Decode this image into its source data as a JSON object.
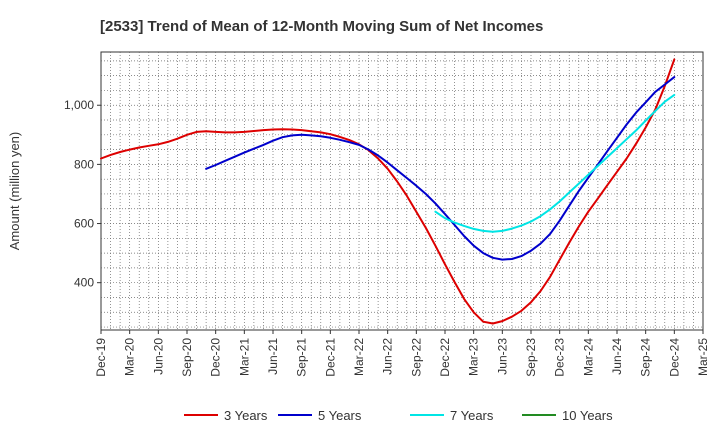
{
  "chart_data": {
    "type": "line",
    "title": "[2533]  Trend of Mean of 12-Month Moving Sum of Net Incomes",
    "ylabel": "Amount (million yen)",
    "xlabel": "",
    "x_ticks": [
      "Dec-19",
      "Mar-20",
      "Jun-20",
      "Sep-20",
      "Dec-20",
      "Mar-21",
      "Jun-21",
      "Sep-21",
      "Dec-21",
      "Mar-22",
      "Jun-22",
      "Sep-22",
      "Dec-22",
      "Mar-23",
      "Jun-23",
      "Sep-23",
      "Dec-23",
      "Mar-24",
      "Jun-24",
      "Sep-24",
      "Dec-24",
      "Mar-25"
    ],
    "y_ticks": [
      400,
      600,
      800,
      1000
    ],
    "y_tick_labels": [
      "400",
      "600",
      "800",
      "1,000"
    ],
    "ylim": [
      240,
      1180
    ],
    "grid": true,
    "legend_position": "bottom",
    "series": [
      {
        "name": "3 Years",
        "color": "#dd0000",
        "x": [
          "Dec-19",
          "Jan-20",
          "Feb-20",
          "Mar-20",
          "Apr-20",
          "May-20",
          "Jun-20",
          "Jul-20",
          "Aug-20",
          "Sep-20",
          "Oct-20",
          "Nov-20",
          "Dec-20",
          "Jan-21",
          "Feb-21",
          "Mar-21",
          "Apr-21",
          "May-21",
          "Jun-21",
          "Jul-21",
          "Aug-21",
          "Sep-21",
          "Oct-21",
          "Nov-21",
          "Dec-21",
          "Jan-22",
          "Feb-22",
          "Mar-22",
          "Apr-22",
          "May-22",
          "Jun-22",
          "Jul-22",
          "Aug-22",
          "Sep-22",
          "Oct-22",
          "Nov-22",
          "Dec-22",
          "Jan-23",
          "Feb-23",
          "Mar-23",
          "Apr-23",
          "May-23",
          "Jun-23",
          "Jul-23",
          "Aug-23",
          "Sep-23",
          "Oct-23",
          "Nov-23",
          "Dec-23",
          "Jan-24",
          "Feb-24",
          "Mar-24",
          "Apr-24",
          "May-24",
          "Jun-24",
          "Jul-24",
          "Aug-24",
          "Sep-24",
          "Oct-24",
          "Nov-24",
          "Dec-24"
        ],
        "values": [
          820,
          832,
          842,
          850,
          857,
          863,
          868,
          876,
          887,
          900,
          910,
          912,
          910,
          908,
          908,
          910,
          913,
          916,
          918,
          919,
          918,
          916,
          912,
          908,
          902,
          893,
          882,
          868,
          848,
          820,
          785,
          742,
          694,
          640,
          585,
          525,
          462,
          402,
          345,
          300,
          268,
          262,
          270,
          285,
          305,
          334,
          372,
          420,
          478,
          535,
          590,
          640,
          685,
          730,
          775,
          820,
          870,
          925,
          985,
          1065,
          1155
        ]
      },
      {
        "name": "5 Years",
        "color": "#0000cc",
        "x": [
          "Nov-20",
          "Dec-20",
          "Jan-21",
          "Feb-21",
          "Mar-21",
          "Apr-21",
          "May-21",
          "Jun-21",
          "Jul-21",
          "Aug-21",
          "Sep-21",
          "Oct-21",
          "Nov-21",
          "Dec-21",
          "Jan-22",
          "Feb-22",
          "Mar-22",
          "Apr-22",
          "May-22",
          "Jun-22",
          "Jul-22",
          "Aug-22",
          "Sep-22",
          "Oct-22",
          "Nov-22",
          "Dec-22",
          "Jan-23",
          "Feb-23",
          "Mar-23",
          "Apr-23",
          "May-23",
          "Jun-23",
          "Jul-23",
          "Aug-23",
          "Sep-23",
          "Oct-23",
          "Nov-23",
          "Dec-23",
          "Jan-24",
          "Feb-24",
          "Mar-24",
          "Apr-24",
          "May-24",
          "Jun-24",
          "Jul-24",
          "Aug-24",
          "Sep-24",
          "Oct-24",
          "Nov-24",
          "Dec-24"
        ],
        "values": [
          785,
          798,
          812,
          826,
          840,
          853,
          866,
          880,
          892,
          898,
          900,
          898,
          895,
          890,
          883,
          875,
          866,
          850,
          830,
          806,
          780,
          754,
          728,
          700,
          668,
          632,
          595,
          558,
          525,
          500,
          484,
          478,
          480,
          490,
          508,
          532,
          565,
          610,
          660,
          710,
          755,
          800,
          845,
          890,
          935,
          975,
          1010,
          1045,
          1070,
          1095
        ]
      },
      {
        "name": "7 Years",
        "color": "#00e5e5",
        "x": [
          "Nov-22",
          "Dec-22",
          "Jan-23",
          "Feb-23",
          "Mar-23",
          "Apr-23",
          "May-23",
          "Jun-23",
          "Jul-23",
          "Aug-23",
          "Sep-23",
          "Oct-23",
          "Nov-23",
          "Dec-23",
          "Jan-24",
          "Feb-24",
          "Mar-24",
          "Apr-24",
          "May-24",
          "Jun-24",
          "Jul-24",
          "Aug-24",
          "Sep-24",
          "Oct-24",
          "Nov-24",
          "Dec-24"
        ],
        "values": [
          640,
          618,
          603,
          592,
          582,
          575,
          572,
          575,
          583,
          593,
          607,
          625,
          648,
          675,
          705,
          735,
          765,
          795,
          825,
          855,
          885,
          915,
          948,
          980,
          1012,
          1035
        ]
      },
      {
        "name": "10 Years",
        "color": "#228b22",
        "x": [],
        "values": []
      }
    ]
  }
}
